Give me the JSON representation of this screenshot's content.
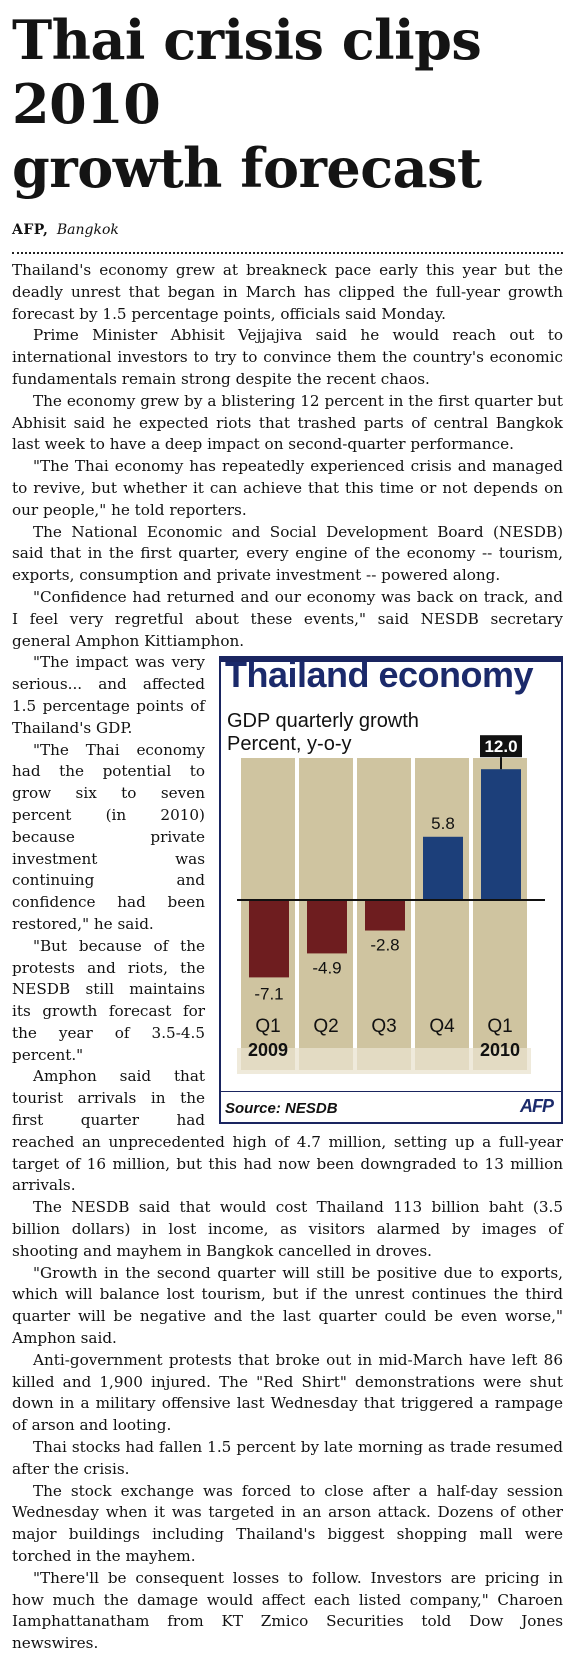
{
  "article": {
    "headline_line1": "Thai crisis clips 2010",
    "headline_line2": "growth forecast",
    "byline_agency": "AFP,",
    "byline_city": "Bangkok",
    "paragraphs": [
      "Thailand's economy grew at breakneck pace early this year but the deadly unrest that began in March has clipped the full-year growth forecast by 1.5 percentage points, officials said Monday.",
      "Prime Minister Abhisit Vejjajiva said he would reach out to international investors to try to convince them the country's economic fundamentals remain strong despite the recent chaos.",
      "The economy grew by a blistering 12 percent in the first quarter but Abhisit said he expected riots that trashed parts of central Bangkok last week to have a deep impact on second-quarter performance.",
      "\"The Thai economy has repeatedly experienced crisis and managed to revive, but whether it can achieve that this time or not depends on our people,\" he told reporters.",
      "The National Economic and Social Development Board (NESDB) said that in the first quarter, every engine of the economy -- tourism, exports, consumption and private investment -- powered along.",
      "\"Confidence had returned and our economy was back on track, and I feel very regretful about these events,\" said NESDB secretary general Amphon Kittiamphon.",
      "\"The impact was very serious... and affected 1.5 percentage points of Thailand's GDP.",
      "\"The Thai economy had the potential to grow six to seven percent (in 2010) because private investment was continuing and confidence had been restored,\" he said.",
      "\"But because of the protests and riots, the NESDB still maintains its growth forecast for the year of 3.5-4.5 percent.\"",
      "Amphon said that tourist arrivals in the first quarter had reached an unprecedented high of 4.7 million, setting up a full-year target of 16 million, but this had now been downgraded to 13 million arrivals.",
      "The NESDB said that would cost Thailand 113 billion baht (3.5 billion dollars) in lost income, as visitors alarmed by images of shooting and mayhem in Bangkok cancelled in droves.",
      "\"Growth in the second quarter will still be positive due to exports, which will balance lost tourism, but if the unrest continues the third quarter will be negative and the last quarter could be even worse,\" Amphon said.",
      "Anti-government protests that broke out in mid-March have left 86 killed and 1,900 injured. The \"Red Shirt\" demonstrations were shut down in a military offensive last Wednesday that triggered a rampage of arson and looting.",
      "Thai stocks had fallen 1.5 percent by late morning as trade resumed after the crisis.",
      "The stock exchange was forced to close after a half-day session Wednesday when it was targeted in an arson attack. Dozens of other major buildings including Thailand's biggest shopping mall were torched in the mayhem.",
      "\"There'll be consequent losses to follow. Investors are pricing in how much the damage would affect each listed company,\" Charoen Iamphattanatham from KT Zmico Securities told Dow Jones newswires."
    ]
  },
  "graphic": {
    "title": "Thailand economy",
    "subtitle_line1": "GDP quarterly growth",
    "subtitle_line2": "Percent, y-o-y",
    "source": "Source: NESDB",
    "logo": "AFP",
    "colors": {
      "negative": "#6e1d1f",
      "positive": "#1c3f7a",
      "band": "#cfc4a0",
      "title": "#1b2a6b"
    }
  },
  "chart_data": {
    "type": "bar",
    "categories": [
      "Q1",
      "Q2",
      "Q3",
      "Q4",
      "Q1"
    ],
    "year_labels": [
      "2009",
      "",
      "",
      "",
      "2010"
    ],
    "values": [
      -7.1,
      -4.9,
      -2.8,
      5.8,
      12.0
    ],
    "value_labels": [
      "-7.1",
      "-4.9",
      "-2.8",
      "5.8",
      "12.0"
    ],
    "highlighted_index": 4,
    "title": "Thailand economy",
    "subtitle": "GDP quarterly growth Percent, y-o-y",
    "grid": false
  }
}
